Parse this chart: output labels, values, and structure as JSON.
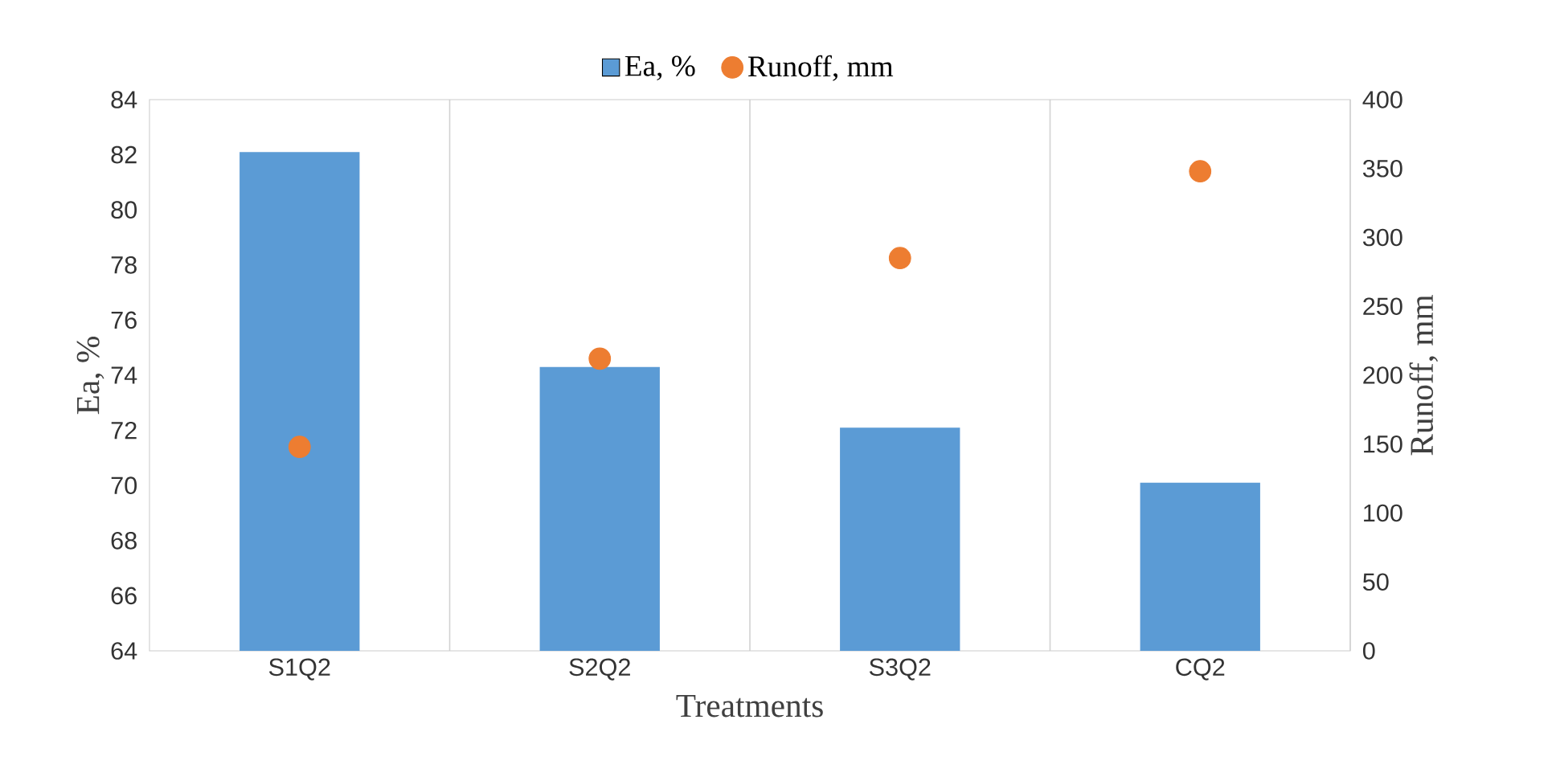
{
  "chart_data": {
    "type": "bar",
    "xlabel": "Treatments",
    "ylabel": "Ea, %",
    "y2label": "Runoff, mm",
    "categories": [
      "S1Q2",
      "S2Q2",
      "S3Q2",
      "CQ2"
    ],
    "series": [
      {
        "name": "Ea, %",
        "color": "#5b9bd5",
        "values": [
          82.1,
          74.3,
          72.1,
          70.1
        ]
      },
      {
        "name": "Runoff, mm",
        "type": "scatter",
        "axis": "y2",
        "color": "#ed7d31",
        "values": [
          148,
          212,
          285,
          348
        ]
      }
    ],
    "ylim": [
      64,
      84
    ],
    "yticks": [
      64,
      66,
      68,
      70,
      72,
      74,
      76,
      78,
      80,
      82,
      84
    ],
    "y2lim": [
      0,
      400
    ],
    "y2ticks": [
      0,
      50,
      100,
      150,
      200,
      250,
      300,
      350,
      400
    ],
    "grid": "x",
    "legend": "top"
  }
}
